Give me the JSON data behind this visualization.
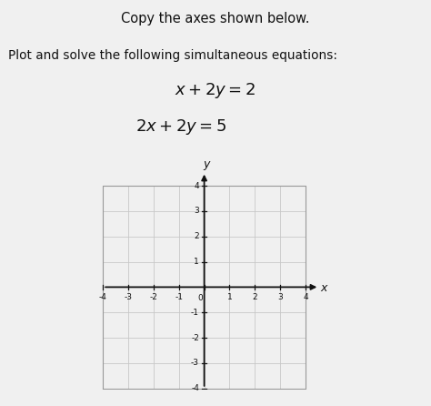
{
  "title_line1": "Copy the axes shown below.",
  "title_line2": "Plot and solve the following simultaneous equations:",
  "eq1": "$x + 2y = 2$",
  "eq2": "$2x + 2y = 5$",
  "bg_color": "#f0f0f0",
  "grid_color": "#c8c8c8",
  "border_color": "#999999",
  "axis_color": "#111111",
  "text_color": "#111111",
  "xlim": [
    -4,
    4
  ],
  "ylim": [
    -4,
    4
  ],
  "xticks": [
    -4,
    -3,
    -2,
    -1,
    0,
    1,
    2,
    3,
    4
  ],
  "yticks": [
    -4,
    -3,
    -2,
    -1,
    0,
    1,
    2,
    3,
    4
  ],
  "xlabel": "x",
  "ylabel": "y",
  "figsize": [
    4.74,
    4.46
  ],
  "dpi": 100
}
